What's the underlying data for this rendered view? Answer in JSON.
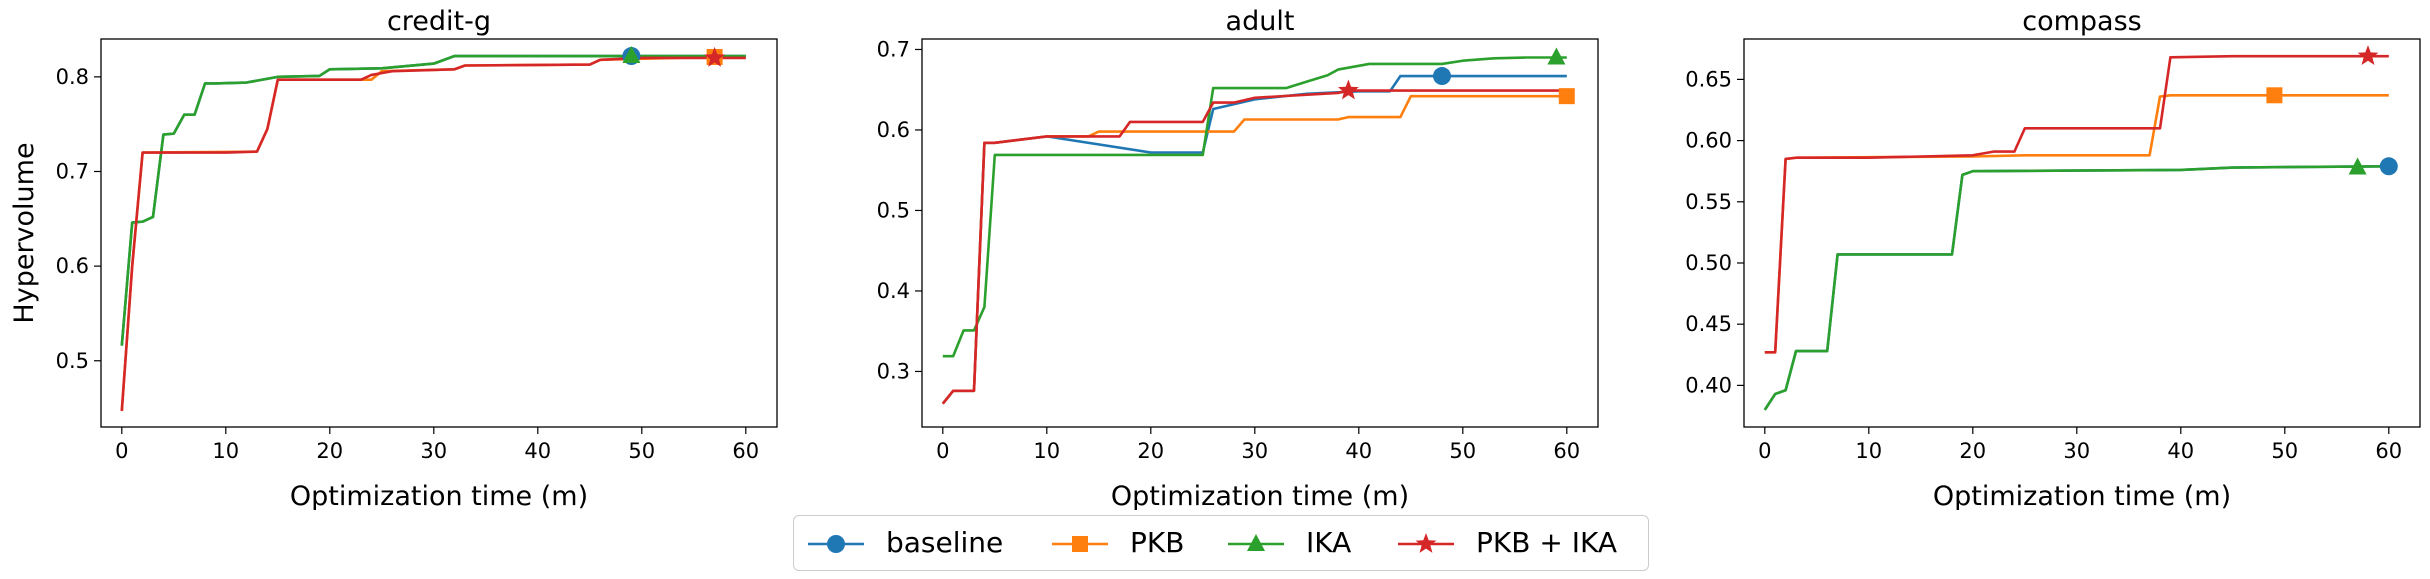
{
  "figure": {
    "ylabel": "Hypervolume",
    "xlabel": "Optimization time (m)"
  },
  "legend": [
    {
      "label": "baseline",
      "color": "#1f77b4",
      "marker": "circle"
    },
    {
      "label": "PKB",
      "color": "#ff7f0e",
      "marker": "square"
    },
    {
      "label": "IKA",
      "color": "#2ca02c",
      "marker": "triangle"
    },
    {
      "label": "PKB + IKA",
      "color": "#d62728",
      "marker": "star"
    }
  ],
  "chart_data": [
    {
      "type": "line",
      "title": "credit-g",
      "xlabel": "Optimization time (m)",
      "ylabel": "Hypervolume",
      "xlim": [
        -2,
        63
      ],
      "ylim": [
        0.43,
        0.84
      ],
      "xticks": [
        0,
        10,
        20,
        30,
        40,
        50,
        60
      ],
      "yticks": [
        0.5,
        0.6,
        0.7,
        0.8
      ],
      "ytick_labels": [
        "0.5",
        "0.6",
        "0.7",
        "0.8"
      ],
      "series": [
        {
          "name": "baseline",
          "color": "#1f77b4",
          "marker": "circle",
          "marker_x": 49,
          "x": [
            0,
            1,
            2,
            3,
            4,
            5,
            6,
            7,
            8,
            9,
            12,
            15,
            19,
            20,
            25,
            30,
            32,
            49,
            60
          ],
          "y": [
            0.516,
            0.646,
            0.647,
            0.652,
            0.739,
            0.74,
            0.76,
            0.76,
            0.793,
            0.793,
            0.794,
            0.8,
            0.801,
            0.808,
            0.809,
            0.814,
            0.822,
            0.822,
            0.822
          ]
        },
        {
          "name": "PKB",
          "color": "#ff7f0e",
          "marker": "square",
          "marker_x": 57,
          "x": [
            0,
            1,
            2,
            13,
            14,
            15,
            24,
            25,
            32,
            33,
            45,
            46,
            57,
            60
          ],
          "y": [
            0.447,
            0.6,
            0.72,
            0.721,
            0.745,
            0.797,
            0.797,
            0.806,
            0.808,
            0.812,
            0.813,
            0.818,
            0.821,
            0.821
          ]
        },
        {
          "name": "IKA",
          "color": "#2ca02c",
          "marker": "triangle",
          "marker_x": 49,
          "x": [
            0,
            1,
            2,
            3,
            4,
            5,
            6,
            7,
            8,
            9,
            12,
            15,
            19,
            20,
            25,
            30,
            32,
            49,
            60
          ],
          "y": [
            0.516,
            0.646,
            0.647,
            0.652,
            0.739,
            0.74,
            0.76,
            0.76,
            0.793,
            0.793,
            0.794,
            0.8,
            0.801,
            0.808,
            0.809,
            0.814,
            0.822,
            0.822,
            0.822
          ]
        },
        {
          "name": "PKB + IKA",
          "color": "#d62728",
          "marker": "star",
          "marker_x": 57,
          "x": [
            0,
            1,
            2,
            10,
            13,
            14,
            15,
            20,
            23,
            24,
            26,
            32,
            33,
            45,
            46,
            50,
            60
          ],
          "y": [
            0.447,
            0.6,
            0.72,
            0.72,
            0.721,
            0.745,
            0.797,
            0.797,
            0.797,
            0.802,
            0.806,
            0.808,
            0.812,
            0.813,
            0.818,
            0.82,
            0.82
          ]
        }
      ]
    },
    {
      "type": "line",
      "title": "adult",
      "xlabel": "Optimization time (m)",
      "ylabel": "",
      "xlim": [
        -2,
        63
      ],
      "ylim": [
        0.231,
        0.713
      ],
      "xticks": [
        0,
        10,
        20,
        30,
        40,
        50,
        60
      ],
      "yticks": [
        0.3,
        0.4,
        0.5,
        0.6,
        0.7
      ],
      "ytick_labels": [
        "0.3",
        "0.4",
        "0.5",
        "0.6",
        "0.7"
      ],
      "series": [
        {
          "name": "baseline",
          "color": "#1f77b4",
          "marker": "circle",
          "marker_x": 48,
          "x": [
            0,
            1,
            3,
            4,
            5,
            10,
            20,
            25,
            26,
            30,
            35,
            40,
            43,
            44,
            48,
            60
          ],
          "y": [
            0.26,
            0.276,
            0.276,
            0.584,
            0.584,
            0.592,
            0.572,
            0.572,
            0.626,
            0.638,
            0.645,
            0.648,
            0.648,
            0.667,
            0.667,
            0.667
          ]
        },
        {
          "name": "PKB",
          "color": "#ff7f0e",
          "marker": "square",
          "marker_x": 60,
          "x": [
            0,
            1,
            3,
            4,
            5,
            10,
            14,
            15,
            25,
            26,
            28,
            29,
            38,
            39,
            44,
            45,
            60
          ],
          "y": [
            0.26,
            0.276,
            0.276,
            0.584,
            0.584,
            0.592,
            0.592,
            0.598,
            0.598,
            0.598,
            0.598,
            0.613,
            0.613,
            0.616,
            0.616,
            0.642,
            0.642
          ]
        },
        {
          "name": "IKA",
          "color": "#2ca02c",
          "marker": "triangle",
          "marker_x": 59,
          "x": [
            0,
            1,
            2,
            3,
            4,
            5,
            25,
            26,
            33,
            35,
            37,
            38,
            41,
            48,
            50,
            53,
            56,
            60
          ],
          "y": [
            0.319,
            0.319,
            0.351,
            0.351,
            0.38,
            0.569,
            0.569,
            0.652,
            0.652,
            0.66,
            0.668,
            0.675,
            0.682,
            0.682,
            0.686,
            0.689,
            0.69,
            0.69
          ]
        },
        {
          "name": "PKB + IKA",
          "color": "#d62728",
          "marker": "star",
          "marker_x": 39,
          "x": [
            0,
            1,
            3,
            4,
            5,
            10,
            17,
            18,
            25,
            26,
            28,
            30,
            38,
            39,
            60
          ],
          "y": [
            0.26,
            0.276,
            0.276,
            0.584,
            0.584,
            0.592,
            0.592,
            0.61,
            0.61,
            0.634,
            0.634,
            0.64,
            0.646,
            0.649,
            0.649
          ]
        }
      ]
    },
    {
      "type": "line",
      "title": "compass",
      "xlabel": "Optimization time (m)",
      "ylabel": "",
      "xlim": [
        -2,
        63
      ],
      "ylim": [
        0.366,
        0.683
      ],
      "xticks": [
        0,
        10,
        20,
        30,
        40,
        50,
        60
      ],
      "yticks": [
        0.4,
        0.45,
        0.5,
        0.55,
        0.6,
        0.65
      ],
      "ytick_labels": [
        "0.40",
        "0.45",
        "0.50",
        "0.55",
        "0.60",
        "0.65"
      ],
      "series": [
        {
          "name": "baseline",
          "color": "#1f77b4",
          "marker": "circle",
          "marker_x": 60,
          "x": [
            0,
            1,
            2,
            3,
            6,
            7,
            18,
            19,
            20,
            40,
            45,
            60
          ],
          "y": [
            0.38,
            0.393,
            0.396,
            0.428,
            0.428,
            0.507,
            0.507,
            0.572,
            0.575,
            0.576,
            0.578,
            0.579
          ]
        },
        {
          "name": "PKB",
          "color": "#ff7f0e",
          "marker": "square",
          "marker_x": 49,
          "x": [
            0,
            1,
            2,
            3,
            20,
            25,
            37,
            38,
            39,
            60
          ],
          "y": [
            0.427,
            0.427,
            0.585,
            0.586,
            0.587,
            0.588,
            0.588,
            0.636,
            0.637,
            0.637
          ]
        },
        {
          "name": "IKA",
          "color": "#2ca02c",
          "marker": "triangle",
          "marker_x": 57,
          "x": [
            0,
            1,
            2,
            3,
            6,
            7,
            18,
            19,
            20,
            40,
            45,
            60
          ],
          "y": [
            0.38,
            0.393,
            0.396,
            0.428,
            0.428,
            0.507,
            0.507,
            0.572,
            0.575,
            0.576,
            0.578,
            0.579
          ]
        },
        {
          "name": "PKB + IKA",
          "color": "#d62728",
          "marker": "star",
          "marker_x": 58,
          "x": [
            0,
            1,
            2,
            3,
            10,
            20,
            22,
            24,
            25,
            38,
            39,
            45,
            60
          ],
          "y": [
            0.427,
            0.427,
            0.585,
            0.586,
            0.586,
            0.588,
            0.591,
            0.591,
            0.61,
            0.61,
            0.668,
            0.669,
            0.669
          ]
        }
      ]
    }
  ]
}
